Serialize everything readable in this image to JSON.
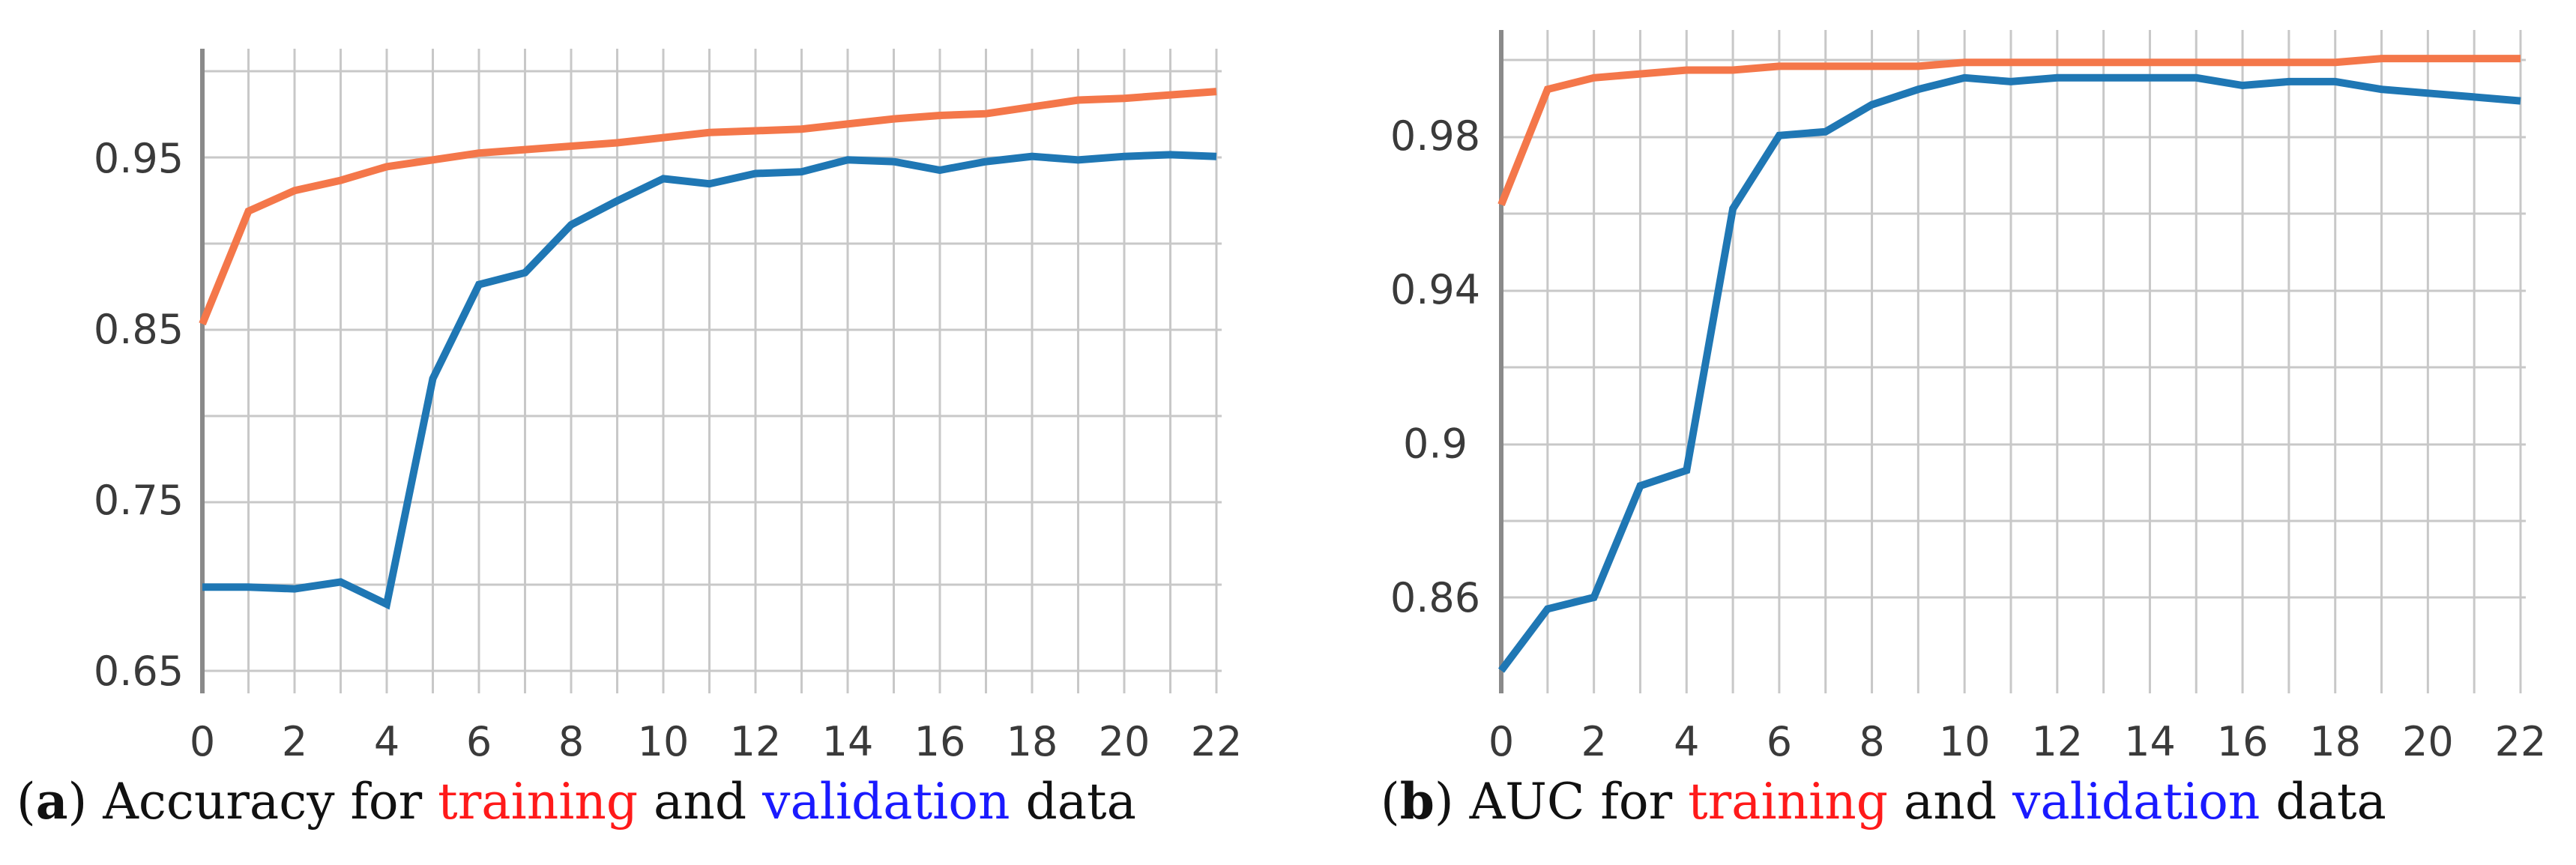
{
  "colors": {
    "training": "#F4774A",
    "validation": "#1F77B4",
    "grid": "#c8c8c8",
    "axis": "#8a8a8a"
  },
  "chart_data": [
    {
      "type": "line",
      "panel": "a",
      "title": "",
      "xlabel": "",
      "ylabel": "",
      "xlim": [
        0,
        22
      ],
      "ylim": [
        0.65,
        1.0
      ],
      "x": [
        0,
        1,
        2,
        3,
        4,
        5,
        6,
        7,
        8,
        9,
        10,
        11,
        12,
        13,
        14,
        15,
        16,
        17,
        18,
        19,
        20,
        21,
        22
      ],
      "xticks": [
        "0",
        "2",
        "4",
        "6",
        "8",
        "10",
        "12",
        "14",
        "16",
        "18",
        "20",
        "22"
      ],
      "yticks": [
        "0.65",
        "0.75",
        "0.85",
        "0.95"
      ],
      "series": [
        {
          "name": "training",
          "color": "#F4774A",
          "values": [
            0.853,
            0.919,
            0.931,
            0.937,
            0.945,
            0.949,
            0.953,
            0.955,
            0.957,
            0.959,
            0.962,
            0.965,
            0.966,
            0.967,
            0.97,
            0.973,
            0.975,
            0.976,
            0.98,
            0.984,
            0.985,
            0.987,
            0.989
          ]
        },
        {
          "name": "validation",
          "color": "#1F77B4",
          "values": [
            0.699,
            0.699,
            0.698,
            0.702,
            0.689,
            0.821,
            0.876,
            0.883,
            0.911,
            0.925,
            0.938,
            0.935,
            0.941,
            0.942,
            0.949,
            0.948,
            0.943,
            0.948,
            0.951,
            0.949,
            0.951,
            0.952,
            0.951
          ]
        }
      ],
      "caption": {
        "label": "a",
        "pre": " Accuracy for ",
        "training_word": "training",
        "mid": " and ",
        "validation_word": "validation",
        "post": " data"
      }
    },
    {
      "type": "line",
      "panel": "b",
      "title": "",
      "xlabel": "",
      "ylabel": "",
      "xlim": [
        0,
        22
      ],
      "ylim": [
        0.84,
        1.0
      ],
      "x": [
        0,
        1,
        2,
        3,
        4,
        5,
        6,
        7,
        8,
        9,
        10,
        11,
        12,
        13,
        14,
        15,
        16,
        17,
        18,
        19,
        20,
        21,
        22
      ],
      "xticks": [
        "0",
        "2",
        "4",
        "6",
        "8",
        "10",
        "12",
        "14",
        "16",
        "18",
        "20",
        "22"
      ],
      "yticks": [
        "0.86",
        "0.9",
        "0.94",
        "0.98"
      ],
      "series": [
        {
          "name": "training",
          "color": "#F4774A",
          "values": [
            0.962,
            0.992,
            0.995,
            0.996,
            0.997,
            0.997,
            0.998,
            0.998,
            0.998,
            0.998,
            0.999,
            0.999,
            0.999,
            0.999,
            0.999,
            0.999,
            0.999,
            0.999,
            0.999,
            1.0,
            1.0,
            1.0,
            1.0
          ]
        },
        {
          "name": "validation",
          "color": "#1F77B4",
          "values": [
            0.841,
            0.857,
            0.86,
            0.889,
            0.893,
            0.961,
            0.98,
            0.981,
            0.988,
            0.992,
            0.995,
            0.994,
            0.995,
            0.995,
            0.995,
            0.995,
            0.993,
            0.994,
            0.994,
            0.992,
            0.991,
            0.99,
            0.989
          ]
        }
      ],
      "caption": {
        "label": "b",
        "pre": " AUC for ",
        "training_word": "training",
        "mid": " and ",
        "validation_word": "validation",
        "post": " data"
      }
    }
  ]
}
